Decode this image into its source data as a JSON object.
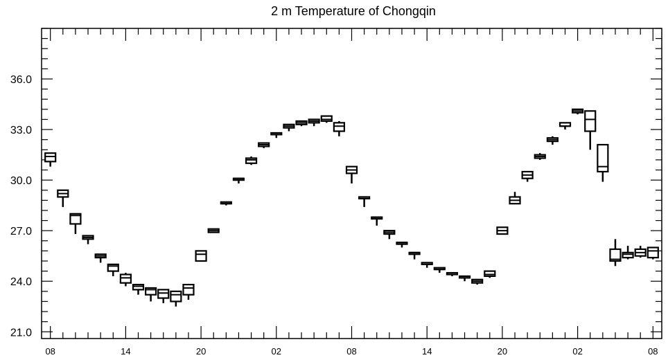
{
  "chart_data": {
    "type": "boxplot",
    "title": "2 m Temperature of Chongqin",
    "xlabel": "",
    "ylabel": "",
    "ylim": [
      20.6,
      39.0
    ],
    "y_ticks": [
      21.0,
      24.0,
      27.0,
      30.0,
      33.0,
      36.0
    ],
    "y_tick_labels": [
      "21.0",
      "24.0",
      "27.0",
      "30.0",
      "33.0",
      "36.0"
    ],
    "y_minor_step": 0.6,
    "x_tick_labels": [
      "08",
      "14",
      "20",
      "02",
      "08",
      "14",
      "20",
      "02",
      "08"
    ],
    "x_tick_positions": [
      0,
      6,
      12,
      18,
      24,
      30,
      36,
      42,
      48
    ],
    "xlim": [
      -0.7,
      48.7
    ],
    "grid": false,
    "series": [
      {
        "boxes": [
          {
            "x": 0,
            "whislo": 30.8,
            "q1": 31.1,
            "med": 31.4,
            "q3": 31.6,
            "whishi": 31.6
          },
          {
            "x": 1,
            "whislo": 28.4,
            "q1": 29.0,
            "med": 29.2,
            "q3": 29.4,
            "whishi": 29.4
          },
          {
            "x": 2,
            "whislo": 26.8,
            "q1": 27.4,
            "med": 27.9,
            "q3": 28.0,
            "whishi": 28.0
          },
          {
            "x": 3,
            "whislo": 26.2,
            "q1": 26.5,
            "med": 26.6,
            "q3": 26.7,
            "whishi": 26.7
          },
          {
            "x": 4,
            "whislo": 25.1,
            "q1": 25.4,
            "med": 25.5,
            "q3": 25.6,
            "whishi": 25.6
          },
          {
            "x": 5,
            "whislo": 24.3,
            "q1": 24.6,
            "med": 24.9,
            "q3": 25.0,
            "whishi": 25.0
          },
          {
            "x": 6,
            "whislo": 23.7,
            "q1": 23.9,
            "med": 24.2,
            "q3": 24.4,
            "whishi": 24.5
          },
          {
            "x": 7,
            "whislo": 23.2,
            "q1": 23.5,
            "med": 23.7,
            "q3": 23.8,
            "whishi": 23.8
          },
          {
            "x": 8,
            "whislo": 22.8,
            "q1": 23.2,
            "med": 23.5,
            "q3": 23.6,
            "whishi": 23.6
          },
          {
            "x": 9,
            "whislo": 22.7,
            "q1": 23.0,
            "med": 23.3,
            "q3": 23.5,
            "whishi": 23.5
          },
          {
            "x": 10,
            "whislo": 22.5,
            "q1": 22.8,
            "med": 23.2,
            "q3": 23.4,
            "whishi": 23.4
          },
          {
            "x": 11,
            "whislo": 22.9,
            "q1": 23.2,
            "med": 23.6,
            "q3": 23.8,
            "whishi": 23.8
          },
          {
            "x": 12,
            "whislo": 25.2,
            "q1": 25.2,
            "med": 25.6,
            "q3": 25.8,
            "whishi": 25.8
          },
          {
            "x": 13,
            "whislo": 26.9,
            "q1": 26.9,
            "med": 27.0,
            "q3": 27.1,
            "whishi": 27.1
          },
          {
            "x": 14,
            "whislo": 28.5,
            "q1": 28.6,
            "med": 28.6,
            "q3": 28.7,
            "whishi": 28.7
          },
          {
            "x": 15,
            "whislo": 29.8,
            "q1": 30.0,
            "med": 30.1,
            "q3": 30.1,
            "whishi": 30.1
          },
          {
            "x": 16,
            "whislo": 30.9,
            "q1": 31.0,
            "med": 31.2,
            "q3": 31.3,
            "whishi": 31.4
          },
          {
            "x": 17,
            "whislo": 31.9,
            "q1": 32.0,
            "med": 32.1,
            "q3": 32.2,
            "whishi": 32.2
          },
          {
            "x": 18,
            "whislo": 32.5,
            "q1": 32.7,
            "med": 32.7,
            "q3": 32.8,
            "whishi": 32.8
          },
          {
            "x": 19,
            "whislo": 32.9,
            "q1": 33.1,
            "med": 33.2,
            "q3": 33.3,
            "whishi": 33.3
          },
          {
            "x": 20,
            "whislo": 33.2,
            "q1": 33.3,
            "med": 33.4,
            "q3": 33.5,
            "whishi": 33.5
          },
          {
            "x": 21,
            "whislo": 33.2,
            "q1": 33.4,
            "med": 33.5,
            "q3": 33.6,
            "whishi": 33.6
          },
          {
            "x": 22,
            "whislo": 33.4,
            "q1": 33.5,
            "med": 33.6,
            "q3": 33.8,
            "whishi": 33.8
          },
          {
            "x": 23,
            "whislo": 32.6,
            "q1": 32.9,
            "med": 33.2,
            "q3": 33.4,
            "whishi": 33.5
          },
          {
            "x": 24,
            "whislo": 29.8,
            "q1": 30.4,
            "med": 30.6,
            "q3": 30.8,
            "whishi": 30.8
          },
          {
            "x": 25,
            "whislo": 28.4,
            "q1": 28.9,
            "med": 29.0,
            "q3": 29.0,
            "whishi": 29.0
          },
          {
            "x": 26,
            "whislo": 27.3,
            "q1": 27.7,
            "med": 27.8,
            "q3": 27.8,
            "whishi": 27.8
          },
          {
            "x": 27,
            "whislo": 26.5,
            "q1": 26.8,
            "med": 26.9,
            "q3": 27.0,
            "whishi": 27.0
          },
          {
            "x": 28,
            "whislo": 26.0,
            "q1": 26.2,
            "med": 26.3,
            "q3": 26.3,
            "whishi": 26.3
          },
          {
            "x": 29,
            "whislo": 25.3,
            "q1": 25.6,
            "med": 25.7,
            "q3": 25.7,
            "whishi": 25.7
          },
          {
            "x": 30,
            "whislo": 24.8,
            "q1": 25.0,
            "med": 25.1,
            "q3": 25.1,
            "whishi": 25.1
          },
          {
            "x": 31,
            "whislo": 24.5,
            "q1": 24.7,
            "med": 24.7,
            "q3": 24.8,
            "whishi": 24.8
          },
          {
            "x": 32,
            "whislo": 24.3,
            "q1": 24.4,
            "med": 24.5,
            "q3": 24.5,
            "whishi": 24.5
          },
          {
            "x": 33,
            "whislo": 24.0,
            "q1": 24.2,
            "med": 24.2,
            "q3": 24.3,
            "whishi": 24.3
          },
          {
            "x": 34,
            "whislo": 23.8,
            "q1": 23.9,
            "med": 24.0,
            "q3": 24.1,
            "whishi": 24.1
          },
          {
            "x": 35,
            "whislo": 24.2,
            "q1": 24.3,
            "med": 24.4,
            "q3": 24.6,
            "whishi": 24.6
          },
          {
            "x": 36,
            "whislo": 26.8,
            "q1": 26.8,
            "med": 27.0,
            "q3": 27.2,
            "whishi": 27.2
          },
          {
            "x": 37,
            "whislo": 28.6,
            "q1": 28.6,
            "med": 28.8,
            "q3": 29.0,
            "whishi": 29.3
          },
          {
            "x": 38,
            "whislo": 29.9,
            "q1": 30.1,
            "med": 30.3,
            "q3": 30.5,
            "whishi": 30.5
          },
          {
            "x": 39,
            "whislo": 31.2,
            "q1": 31.3,
            "med": 31.4,
            "q3": 31.5,
            "whishi": 31.6
          },
          {
            "x": 40,
            "whislo": 32.1,
            "q1": 32.3,
            "med": 32.4,
            "q3": 32.5,
            "whishi": 32.6
          },
          {
            "x": 41,
            "whislo": 33.0,
            "q1": 33.2,
            "med": 33.2,
            "q3": 33.4,
            "whishi": 33.4
          },
          {
            "x": 42,
            "whislo": 33.9,
            "q1": 34.0,
            "med": 34.1,
            "q3": 34.2,
            "whishi": 34.2
          },
          {
            "x": 43,
            "whislo": 31.8,
            "q1": 32.9,
            "med": 33.6,
            "q3": 34.1,
            "whishi": 34.1
          },
          {
            "x": 44,
            "whislo": 29.9,
            "q1": 30.5,
            "med": 30.8,
            "q3": 32.1,
            "whishi": 32.1
          },
          {
            "x": 45,
            "whislo": 24.9,
            "q1": 25.2,
            "med": 25.3,
            "q3": 25.9,
            "whishi": 26.5
          },
          {
            "x": 46,
            "whislo": 25.3,
            "q1": 25.4,
            "med": 25.6,
            "q3": 25.7,
            "whishi": 26.1
          },
          {
            "x": 47,
            "whislo": 25.4,
            "q1": 25.5,
            "med": 25.7,
            "q3": 25.9,
            "whishi": 26.1
          },
          {
            "x": 48,
            "whislo": 25.3,
            "q1": 25.4,
            "med": 25.8,
            "q3": 26.0,
            "whishi": 26.0
          }
        ]
      }
    ]
  }
}
